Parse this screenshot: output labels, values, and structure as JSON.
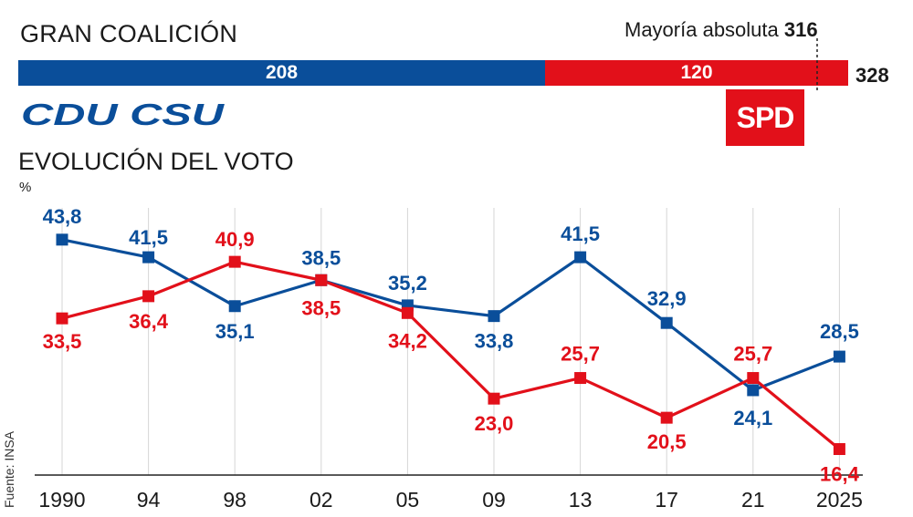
{
  "coalition": {
    "title": "GRAN COALICIÓN",
    "majority_label": "Mayoría absoluta",
    "majority_value": "316",
    "cdu_seats": "208",
    "spd_seats": "120",
    "total_seats": "328",
    "cdu_logo_text": "CDU CSU",
    "spd_logo_text": "SPD"
  },
  "vote_title": "EVOLUCIÓN DEL VOTO",
  "unit": "%",
  "source": "Fuente: INSA",
  "colors": {
    "cdu": "#0a4e9a",
    "spd": "#e2101a"
  },
  "chart_data": {
    "type": "line",
    "title": "EVOLUCIÓN DEL VOTO",
    "ylabel": "%",
    "categories": [
      "1990",
      "94",
      "98",
      "02",
      "05",
      "09",
      "13",
      "17",
      "21",
      "2025"
    ],
    "ylim": [
      13,
      47
    ],
    "series": [
      {
        "name": "CDU/CSU",
        "color": "#0a4e9a",
        "values": [
          43.8,
          41.5,
          35.1,
          38.5,
          35.2,
          33.8,
          41.5,
          32.9,
          24.1,
          28.5
        ],
        "labels": [
          "43,8",
          "41,5",
          "35,1",
          "38,5",
          "35,2",
          "33,8",
          "41,5",
          "32,9",
          "24,1",
          "28,5"
        ]
      },
      {
        "name": "SPD",
        "color": "#e2101a",
        "values": [
          33.5,
          36.4,
          40.9,
          38.5,
          34.2,
          23.0,
          25.7,
          20.5,
          25.7,
          16.4
        ],
        "labels": [
          "33,5",
          "36,4",
          "40,9",
          "38,5",
          "34,2",
          "23,0",
          "25,7",
          "20,5",
          "25,7",
          "16,4"
        ]
      }
    ]
  }
}
